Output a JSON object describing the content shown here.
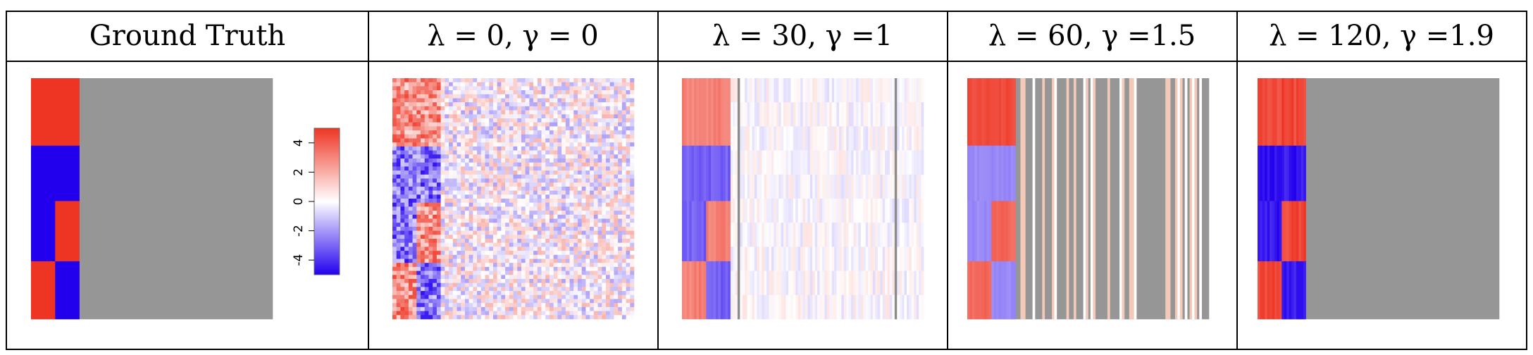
{
  "figure": {
    "panel_titles": [
      "Ground Truth",
      "λ = 0, γ = 0",
      "λ = 30, γ =1",
      "λ = 60, γ =1.5",
      "λ = 120, γ =1.9"
    ]
  },
  "colors": {
    "red": "#ee3524",
    "blue": "#2200ee",
    "gray": "#969696",
    "white": "#ffffff",
    "light_red": "#f08060",
    "light_blue": "#8f7cf2",
    "pale_red": "#f4c9b8",
    "pale_blue": "#b6aaf4"
  },
  "chart_data": {
    "type": "heatmap",
    "colorbar": {
      "ticks": [
        4,
        2,
        0,
        -2,
        -4
      ],
      "range": [
        -5,
        5
      ],
      "colors": [
        "#2200ee",
        "#ffffff",
        "#ee3524"
      ]
    },
    "structure": {
      "columns": 100,
      "signal_columns": 20,
      "block_boundaries": [
        0,
        0.28,
        0.51,
        0.76,
        1.0
      ],
      "block_split_column": 10
    },
    "panels": [
      {
        "lambda": null,
        "gamma": null,
        "kind": "ground-truth"
      },
      {
        "lambda": 0,
        "gamma": 0,
        "kind": "noisy"
      },
      {
        "lambda": 30,
        "gamma": 1,
        "kind": "partial",
        "zero_columns": [
          23,
          88
        ]
      },
      {
        "lambda": 60,
        "gamma": 1.5,
        "kind": "sparse",
        "nonzero_columns": [
          22,
          23,
          27,
          31,
          35,
          36,
          41,
          44,
          48,
          49,
          51,
          52,
          58,
          63,
          64,
          67,
          68,
          69,
          82,
          83,
          86,
          87,
          88,
          90,
          92,
          93,
          94,
          96
        ]
      },
      {
        "lambda": 120,
        "gamma": 1.9,
        "kind": "recovered"
      }
    ]
  }
}
